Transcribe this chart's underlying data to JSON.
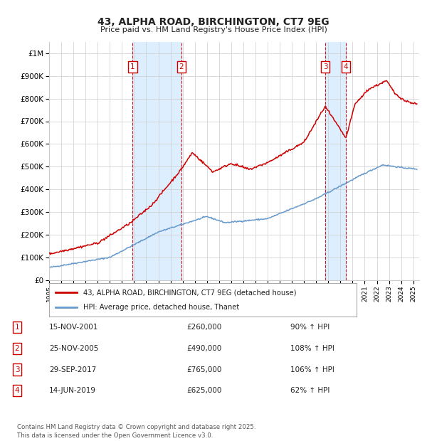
{
  "title": "43, ALPHA ROAD, BIRCHINGTON, CT7 9EG",
  "subtitle": "Price paid vs. HM Land Registry's House Price Index (HPI)",
  "ylabel_ticks": [
    "£0",
    "£100K",
    "£200K",
    "£300K",
    "£400K",
    "£500K",
    "£600K",
    "£700K",
    "£800K",
    "£900K",
    "£1M"
  ],
  "ytick_values": [
    0,
    100000,
    200000,
    300000,
    400000,
    500000,
    600000,
    700000,
    800000,
    900000,
    1000000
  ],
  "ylim": [
    0,
    1050000
  ],
  "xlim_start": 1995.0,
  "xlim_end": 2025.5,
  "transactions": [
    {
      "label": "1",
      "date_num": 2001.88,
      "price": 260000,
      "pct": "90% ↑ HPI",
      "date_str": "15-NOV-2001"
    },
    {
      "label": "2",
      "date_num": 2005.9,
      "price": 490000,
      "pct": "108% ↑ HPI",
      "date_str": "25-NOV-2005"
    },
    {
      "label": "3",
      "date_num": 2017.75,
      "price": 765000,
      "pct": "106% ↑ HPI",
      "date_str": "29-SEP-2017"
    },
    {
      "label": "4",
      "date_num": 2019.45,
      "price": 625000,
      "pct": "62% ↑ HPI",
      "date_str": "14-JUN-2019"
    }
  ],
  "legend_label_red": "43, ALPHA ROAD, BIRCHINGTON, CT7 9EG (detached house)",
  "legend_label_blue": "HPI: Average price, detached house, Thanet",
  "footnote": "Contains HM Land Registry data © Crown copyright and database right 2025.\nThis data is licensed under the Open Government Licence v3.0.",
  "red_color": "#cc0000",
  "blue_color": "#6699cc",
  "shading_color": "#ddeeff",
  "grid_color": "#cccccc",
  "background_color": "#ffffff"
}
